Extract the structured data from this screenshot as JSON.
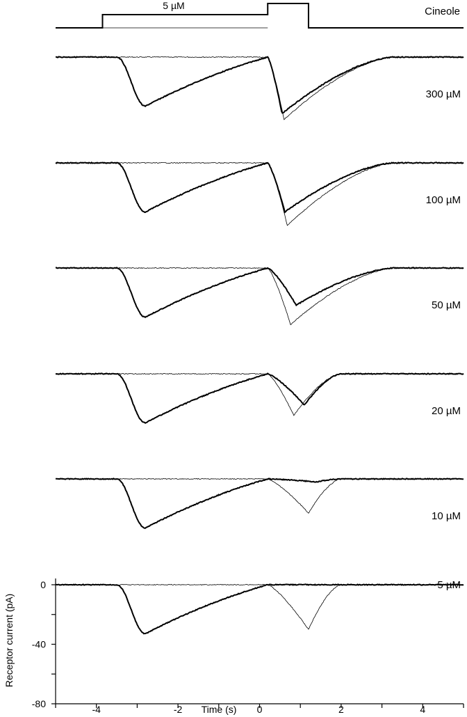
{
  "chart_data": {
    "type": "line",
    "protocol": {
      "label": "Cineole",
      "conditioning_label": "5 µM",
      "conditioning_window": [
        -3.85,
        0.2
      ],
      "pulse_window": [
        0.2,
        1.2
      ]
    },
    "series": [
      {
        "name": "300 µM",
        "thin_peak": -42,
        "thick_peak": -38,
        "thick_peak_time": 0.55
      },
      {
        "name": "100 µM",
        "thin_peak": -42,
        "thick_peak": -33,
        "thick_peak_time": 0.62
      },
      {
        "name": "50 µM",
        "thin_peak": -38,
        "thick_peak": -25,
        "thick_peak_time": 0.9
      },
      {
        "name": "20 µM",
        "thin_peak": -28,
        "thick_peak": -21,
        "thick_peak_time": 1.1
      },
      {
        "name": "10 µM",
        "thin_peak": -23,
        "thick_peak": -2,
        "thick_peak_time": 1.4
      },
      {
        "name": "5 µM",
        "thin_peak": -30,
        "thick_peak": 0,
        "thick_peak_time": 1.2
      }
    ],
    "first_response": {
      "peak": -33,
      "peak_time": -2.8
    },
    "x_axis": {
      "label": "Time (s)",
      "range": [
        -5,
        5
      ],
      "tick_labels": [
        "-4",
        "-2",
        "0",
        "2",
        "4"
      ]
    },
    "y_axis": {
      "label": "Receptor current (pA)",
      "range": [
        -80,
        0
      ],
      "tick_labels": [
        "0",
        "-40",
        "-80"
      ]
    }
  }
}
